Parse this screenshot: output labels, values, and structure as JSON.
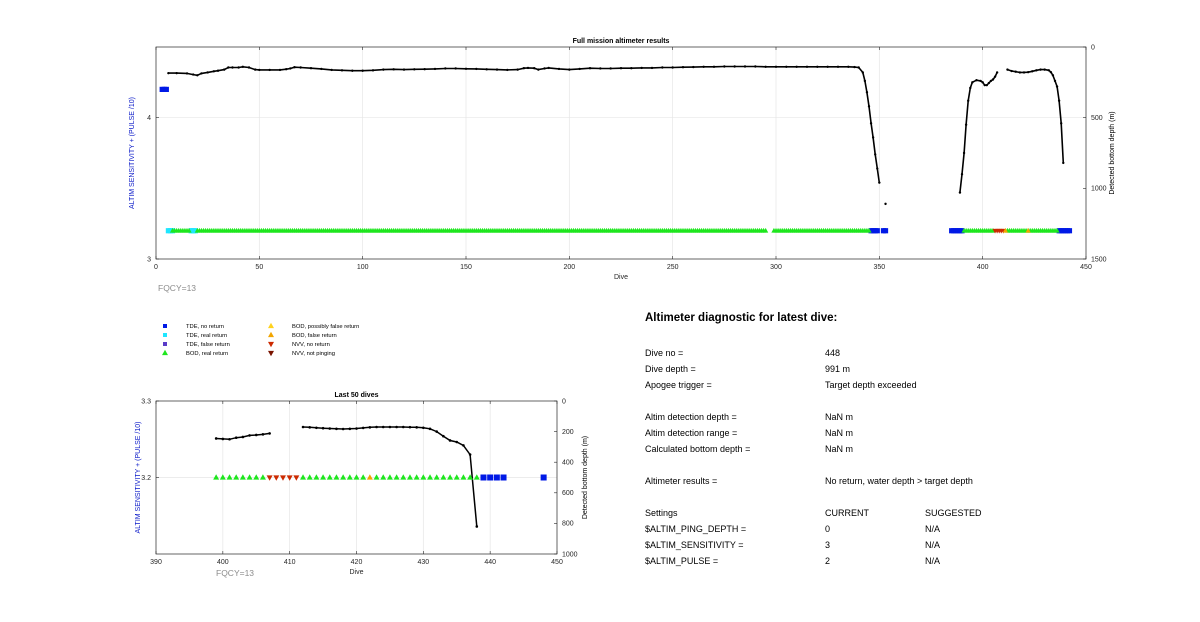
{
  "chart_data": [
    {
      "type": "scatter",
      "title": "Full mission altimeter results",
      "xlabel": "Dive",
      "ylabel": "ALTIM SENSITIVITY + (PULSE /10)",
      "y2label": "Detected bottom depth (m)",
      "xlim": [
        0,
        450
      ],
      "ylim": [
        3,
        4.5
      ],
      "y2lim": [
        0,
        1500
      ],
      "y2_reversed": true,
      "xticks": [
        "0",
        "50",
        "100",
        "150",
        "200",
        "250",
        "300",
        "350",
        "400",
        "450"
      ],
      "yticks": [
        "3",
        "4"
      ],
      "y2ticks": [
        "0",
        "500",
        "1000",
        "1500"
      ],
      "grid": true,
      "annotation": "FQCY=13",
      "series": [
        {
          "name": "Detected bottom depth",
          "axis": "y2",
          "color": "#000000",
          "segments": [
            [
              [
                6,
                185
              ],
              [
                10,
                185
              ],
              [
                15,
                187
              ],
              [
                18,
                195
              ],
              [
                20,
                200
              ],
              [
                22,
                187
              ],
              [
                25,
                180
              ],
              [
                28,
                172
              ],
              [
                30,
                168
              ],
              [
                33,
                160
              ],
              [
                35,
                145
              ],
              [
                37,
                145
              ],
              [
                40,
                145
              ],
              [
                42,
                140
              ],
              [
                45,
                145
              ],
              [
                48,
                160
              ],
              [
                50,
                162
              ],
              [
                55,
                162
              ],
              [
                60,
                162
              ],
              [
                63,
                157
              ],
              [
                65,
                152
              ],
              [
                67,
                143
              ],
              [
                70,
                145
              ],
              [
                75,
                150
              ],
              [
                80,
                155
              ],
              [
                85,
                162
              ],
              [
                90,
                165
              ],
              [
                95,
                168
              ],
              [
                100,
                168
              ],
              [
                105,
                165
              ],
              [
                110,
                160
              ],
              [
                115,
                158
              ],
              [
                120,
                160
              ],
              [
                125,
                158
              ],
              [
                130,
                157
              ],
              [
                135,
                155
              ],
              [
                140,
                152
              ],
              [
                145,
                152
              ],
              [
                150,
                154
              ],
              [
                155,
                155
              ],
              [
                160,
                158
              ],
              [
                165,
                160
              ],
              [
                170,
                162
              ],
              [
                175,
                160
              ],
              [
                178,
                150
              ],
              [
                180,
                148
              ],
              [
                183,
                150
              ],
              [
                185,
                160
              ],
              [
                188,
                152
              ],
              [
                190,
                148
              ],
              [
                195,
                155
              ],
              [
                200,
                160
              ],
              [
                205,
                155
              ],
              [
                210,
                150
              ],
              [
                215,
                152
              ],
              [
                220,
                152
              ],
              [
                225,
                150
              ],
              [
                230,
                150
              ],
              [
                235,
                148
              ],
              [
                240,
                148
              ],
              [
                245,
                145
              ],
              [
                250,
                145
              ],
              [
                255,
                143
              ],
              [
                260,
                142
              ],
              [
                265,
                140
              ],
              [
                270,
                140
              ],
              [
                275,
                138
              ],
              [
                280,
                138
              ],
              [
                285,
                138
              ],
              [
                290,
                138
              ],
              [
                295,
                140
              ],
              [
                300,
                140
              ],
              [
                305,
                140
              ],
              [
                310,
                140
              ],
              [
                315,
                140
              ],
              [
                320,
                140
              ],
              [
                325,
                140
              ],
              [
                330,
                140
              ],
              [
                335,
                140
              ],
              [
                338,
                142
              ],
              [
                340,
                145
              ],
              [
                342,
                180
              ],
              [
                343,
                240
              ],
              [
                344,
                320
              ],
              [
                345,
                420
              ],
              [
                346,
                540
              ],
              [
                347,
                640
              ],
              [
                348,
                760
              ],
              [
                349,
                860
              ],
              [
                350,
                960
              ]
            ],
            [
              [
                353,
                1110
              ]
            ],
            [
              [
                389,
                1030
              ],
              [
                390,
                900
              ],
              [
                391,
                750
              ],
              [
                392,
                550
              ],
              [
                393,
                380
              ],
              [
                394,
                290
              ],
              [
                395,
                250
              ],
              [
                397,
                235
              ],
              [
                399,
                240
              ],
              [
                400,
                250
              ],
              [
                401,
                270
              ],
              [
                402,
                270
              ],
              [
                403,
                255
              ],
              [
                404,
                240
              ],
              [
                405,
                230
              ],
              [
                406,
                210
              ],
              [
                407,
                180
              ]
            ],
            [
              [
                412,
                160
              ],
              [
                414,
                170
              ],
              [
                416,
                175
              ],
              [
                418,
                180
              ],
              [
                420,
                180
              ],
              [
                422,
                178
              ],
              [
                424,
                172
              ],
              [
                426,
                165
              ],
              [
                428,
                160
              ],
              [
                430,
                160
              ],
              [
                432,
                165
              ],
              [
                433,
                178
              ],
              [
                434,
                200
              ],
              [
                435,
                240
              ],
              [
                436,
                280
              ],
              [
                437,
                380
              ],
              [
                438,
                540
              ],
              [
                439,
                820
              ]
            ]
          ]
        },
        {
          "name": "TDE, no return",
          "axis": "y",
          "color": "#0019e6",
          "marker": "square",
          "runs": [
            [
              3,
              5,
              4.2
            ],
            [
              346,
              349,
              3.2
            ],
            [
              352,
              353,
              3.2
            ],
            [
              385,
              390,
              3.2
            ],
            [
              437,
              442,
              3.2
            ]
          ]
        },
        {
          "name": "TDE, real return",
          "axis": "y",
          "color": "#1ee6ff",
          "marker": "square",
          "runs": [
            [
              6,
              8,
              3.2
            ],
            [
              17,
              19,
              3.2
            ]
          ]
        },
        {
          "name": "BOD, real return",
          "axis": "y",
          "color": "#1ee61e",
          "marker": "triangle-up",
          "runs": [
            [
              8,
              16,
              3.2
            ],
            [
              20,
              295,
              3.2
            ],
            [
              299,
              345,
              3.2
            ],
            [
              391,
              405,
              3.2
            ],
            [
              412,
              436,
              3.2
            ]
          ]
        },
        {
          "name": "NVV, no return",
          "axis": "y",
          "color": "#cc2a00",
          "marker": "triangle-down",
          "runs": [
            [
              406,
              410,
              3.2
            ]
          ]
        },
        {
          "name": "BOD, false return",
          "axis": "y",
          "color": "#f2a500",
          "marker": "triangle-up",
          "runs": [
            [
              411,
              411,
              3.2
            ],
            [
              422,
              422,
              3.2
            ]
          ]
        }
      ]
    },
    {
      "type": "scatter",
      "title": "Last 50 dives",
      "xlabel": "Dive",
      "ylabel": "ALTIM SENSITIVITY + (PULSE /10)",
      "y2label": "Detected bottom depth (m)",
      "xlim": [
        390,
        450
      ],
      "ylim": [
        3.1,
        3.3
      ],
      "y2lim": [
        0,
        1000
      ],
      "y2_reversed": true,
      "xticks": [
        "390",
        "400",
        "410",
        "420",
        "430",
        "440",
        "450"
      ],
      "yticks": [
        "3.2",
        "3.3"
      ],
      "y2ticks": [
        "0",
        "200",
        "400",
        "600",
        "800",
        "1000"
      ],
      "grid": true,
      "annotation": "FQCY=13",
      "series": [
        {
          "name": "Detected bottom depth",
          "axis": "y2",
          "color": "#000000",
          "segments": [
            [
              [
                399,
                245
              ],
              [
                400,
                248
              ],
              [
                401,
                250
              ],
              [
                402,
                240
              ],
              [
                403,
                235
              ],
              [
                404,
                225
              ],
              [
                405,
                222
              ],
              [
                406,
                218
              ],
              [
                407,
                212
              ]
            ],
            [
              [
                412,
                170
              ],
              [
                413,
                172
              ],
              [
                414,
                175
              ],
              [
                415,
                178
              ],
              [
                416,
                180
              ],
              [
                417,
                182
              ],
              [
                418,
                183
              ],
              [
                419,
                182
              ],
              [
                420,
                180
              ],
              [
                421,
                176
              ],
              [
                422,
                172
              ],
              [
                423,
                170
              ],
              [
                424,
                170
              ],
              [
                425,
                170
              ],
              [
                426,
                170
              ],
              [
                427,
                170
              ],
              [
                428,
                171
              ],
              [
                429,
                172
              ],
              [
                430,
                175
              ],
              [
                431,
                182
              ],
              [
                432,
                200
              ],
              [
                433,
                230
              ],
              [
                434,
                258
              ],
              [
                435,
                268
              ],
              [
                436,
                290
              ],
              [
                437,
                350
              ],
              [
                438,
                820
              ]
            ]
          ]
        },
        {
          "name": "BOD, real return",
          "axis": "y",
          "color": "#1ee61e",
          "marker": "triangle-up",
          "points": [
            399,
            400,
            401,
            402,
            403,
            404,
            405,
            406,
            412,
            413,
            414,
            415,
            416,
            417,
            418,
            419,
            420,
            421,
            423,
            424,
            425,
            426,
            427,
            428,
            429,
            430,
            431,
            432,
            433,
            434,
            435,
            436,
            437,
            438
          ]
        },
        {
          "name": "NVV, no return",
          "axis": "y",
          "color": "#cc2a00",
          "marker": "triangle-down",
          "points": [
            407,
            408,
            409,
            410,
            411
          ]
        },
        {
          "name": "BOD, false return",
          "axis": "y",
          "color": "#f2a500",
          "marker": "triangle-up",
          "points": [
            422
          ]
        },
        {
          "name": "TDE, no return",
          "axis": "y",
          "color": "#0019e6",
          "marker": "square",
          "points": [
            439,
            440,
            441,
            442,
            448
          ]
        }
      ]
    }
  ],
  "legend": {
    "items": [
      {
        "label": "TDE, no return",
        "color": "#0019e6",
        "marker": "square"
      },
      {
        "label": "TDE, real return",
        "color": "#1ee6ff",
        "marker": "square"
      },
      {
        "label": "TDE, false return",
        "color": "#5a3cc8",
        "marker": "square"
      },
      {
        "label": "BOD, real return",
        "color": "#1ee61e",
        "marker": "triangle-up"
      },
      {
        "label": "BOD, possibly false return",
        "color": "#ffd21e",
        "marker": "triangle-up"
      },
      {
        "label": "BOD, false return",
        "color": "#f2a500",
        "marker": "triangle-up"
      },
      {
        "label": "NVV, no return",
        "color": "#cc2a00",
        "marker": "triangle-down"
      },
      {
        "label": "NVV, not pinging",
        "color": "#7a1400",
        "marker": "triangle-down"
      }
    ]
  },
  "diagnostic": {
    "title": "Altimeter diagnostic for latest dive:",
    "rows": [
      {
        "label": "Dive no =",
        "value": "448"
      },
      {
        "label": "Dive depth =",
        "value": "991 m"
      },
      {
        "label": "Apogee trigger =",
        "value": "Target depth exceeded"
      },
      {
        "label": "Altim detection depth =",
        "value": "NaN m"
      },
      {
        "label": "Altim detection range =",
        "value": "NaN m"
      },
      {
        "label": "Calculated bottom depth =",
        "value": "NaN m"
      },
      {
        "label": "Altimeter results =",
        "value": "No return, water depth > target depth"
      }
    ],
    "settings": {
      "header": {
        "label": "Settings",
        "current": "CURRENT",
        "suggested": "SUGGESTED"
      },
      "rows": [
        {
          "label": "$ALTIM_PING_DEPTH =",
          "current": "0",
          "suggested": "N/A"
        },
        {
          "label": "$ALTIM_SENSITIVITY =",
          "current": "3",
          "suggested": "N/A"
        },
        {
          "label": "$ALTIM_PULSE =",
          "current": "2",
          "suggested": "N/A"
        }
      ]
    }
  }
}
